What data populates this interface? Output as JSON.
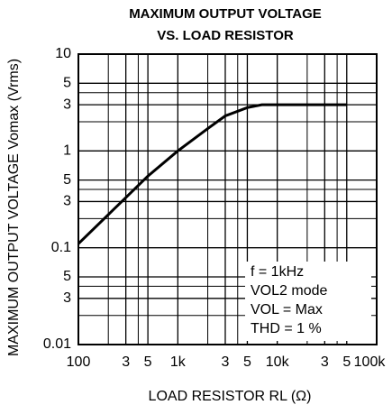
{
  "chart_data": {
    "type": "line",
    "title": [
      "MAXIMUM OUTPUT VOLTAGE",
      "VS. LOAD RESISTOR"
    ],
    "xlabel": "LOAD RESISTOR RL (Ω)",
    "ylabel": "MAXIMUM OUTPUT VOLTAGE Vomax (Vrms)",
    "x": [
      100,
      200,
      300,
      500,
      1000,
      2000,
      3000,
      5000,
      7000,
      10000,
      20000,
      50000
    ],
    "series": [
      {
        "color": "#000000",
        "values": [
          0.11,
          0.22,
          0.33,
          0.55,
          1.0,
          1.7,
          2.3,
          2.8,
          3.0,
          3.0,
          3.0,
          3.0
        ]
      }
    ],
    "xlog": true,
    "ylog": true,
    "grid": true,
    "xlim": [
      100,
      100000
    ],
    "ylim": [
      0.01,
      10
    ],
    "xticks": [
      100,
      {
        "value": 300,
        "label": "3"
      },
      {
        "value": 500,
        "label": "5"
      },
      {
        "value": 1000,
        "label": "1k"
      },
      {
        "value": 3000,
        "label": "3"
      },
      {
        "value": 5000,
        "label": "5"
      },
      {
        "value": 10000,
        "label": "10k"
      },
      {
        "value": 30000,
        "label": "3"
      },
      {
        "value": 50000,
        "label": "5"
      },
      {
        "value": 100000,
        "label": "100k"
      }
    ],
    "yticks": [
      10,
      {
        "value": 5,
        "label": "5"
      },
      {
        "value": 3,
        "label": "3"
      },
      1,
      {
        "value": 0.5,
        "label": "5"
      },
      {
        "value": 0.3,
        "label": "3"
      },
      0.1,
      {
        "value": 0.05,
        "label": "5"
      },
      {
        "value": 0.03,
        "label": "3"
      },
      0.01
    ],
    "xminor": [
      200,
      400,
      2000,
      4000,
      20000,
      40000
    ],
    "yminor": [
      4,
      2,
      0.4,
      0.2,
      0.04,
      0.02
    ],
    "annotations": [
      "f = 1kHz",
      "VOL2 mode",
      "VOL = Max",
      "THD = 1 %"
    ]
  }
}
